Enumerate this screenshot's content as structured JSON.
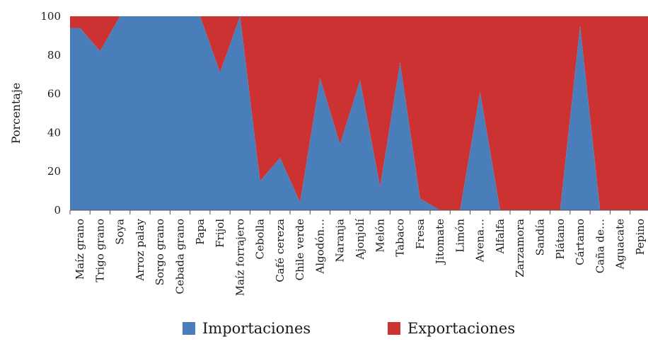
{
  "chart_data": {
    "type": "area",
    "stacked": true,
    "ylabel": "Porcentaje",
    "ylim": [
      0,
      100
    ],
    "yticks": [
      0,
      20,
      40,
      60,
      80,
      100
    ],
    "categories": [
      "Maíz grano",
      "Trigo grano",
      "Soya",
      "Arroz palay",
      "Sorgo grano",
      "Cebada grano",
      "Papa",
      "Frijol",
      "Maíz forrajero",
      "Cebolla",
      "Café cereza",
      "Chile verde",
      "Algodón…",
      "Naranja",
      "Ajonjolí",
      "Melón",
      "Tabaco",
      "Fresa",
      "Jitomate",
      "Limón",
      "Avena…",
      "Alfalfa",
      "Zarzamora",
      "Sandía",
      "Plátano",
      "Cártamo",
      "Caña de…",
      "Aguacate",
      "Pepino"
    ],
    "series": [
      {
        "name": "Importaciones",
        "color": "#4a7ebb",
        "values": [
          94,
          82,
          100,
          100,
          100,
          100,
          100,
          71,
          100,
          15,
          27,
          4,
          68,
          34,
          67,
          12,
          76,
          6,
          0,
          0,
          61,
          0,
          0,
          0,
          0,
          95,
          0,
          0,
          0
        ]
      },
      {
        "name": "Exportaciones",
        "color": "#cd3232",
        "values": [
          6,
          18,
          0,
          0,
          0,
          0,
          0,
          29,
          0,
          85,
          73,
          96,
          32,
          66,
          33,
          88,
          24,
          94,
          100,
          100,
          39,
          100,
          100,
          100,
          100,
          5,
          100,
          100,
          100
        ]
      }
    ],
    "grid": false,
    "legend": "bottom"
  }
}
